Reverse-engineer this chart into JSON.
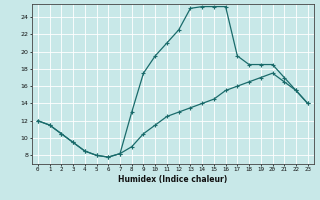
{
  "title": "",
  "xlabel": "Humidex (Indice chaleur)",
  "ylabel": "",
  "bg_color": "#c8e8e8",
  "grid_color": "#ffffff",
  "line_color": "#1a6b6b",
  "xlim": [
    -0.5,
    23.5
  ],
  "ylim": [
    7,
    25.5
  ],
  "xticks": [
    0,
    1,
    2,
    3,
    4,
    5,
    6,
    7,
    8,
    9,
    10,
    11,
    12,
    13,
    14,
    15,
    16,
    17,
    18,
    19,
    20,
    21,
    22,
    23
  ],
  "yticks": [
    8,
    10,
    12,
    14,
    16,
    18,
    20,
    22,
    24
  ],
  "curve1_x": [
    0,
    1,
    2,
    3,
    4,
    5,
    6,
    7,
    8,
    9,
    10,
    11,
    12,
    13,
    14,
    15,
    16,
    17,
    18,
    19,
    20,
    21,
    22,
    23
  ],
  "curve1_y": [
    12,
    11.5,
    10.5,
    9.5,
    8.5,
    8,
    7.8,
    8.2,
    9.0,
    10.5,
    11.5,
    12.5,
    13.0,
    13.5,
    14.0,
    14.5,
    15.5,
    16.0,
    16.5,
    17.0,
    17.5,
    16.5,
    15.5,
    14.0
  ],
  "curve2_x": [
    0,
    1,
    2,
    3,
    4,
    5,
    6,
    7,
    8,
    9,
    10,
    11,
    12,
    13,
    14,
    15,
    16,
    17,
    18,
    19,
    20,
    21,
    22,
    23
  ],
  "curve2_y": [
    12,
    11.5,
    10.5,
    9.5,
    8.5,
    8,
    7.8,
    8.2,
    13.0,
    17.5,
    19.5,
    21.0,
    22.5,
    25.0,
    25.2,
    25.2,
    25.2,
    19.5,
    18.5,
    18.5,
    18.5,
    17.0,
    15.5,
    14.0
  ],
  "marker": "+",
  "markersize": 3,
  "linewidth": 0.9
}
